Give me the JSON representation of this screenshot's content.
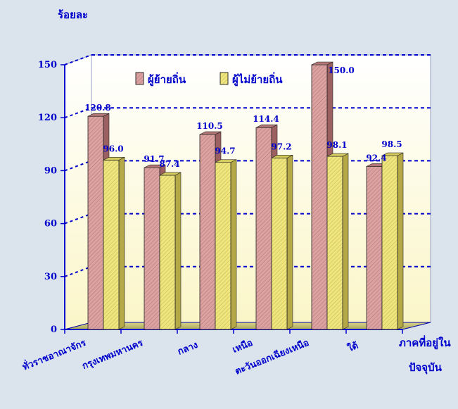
{
  "chart_data": {
    "type": "bar",
    "ylabel": "ร้อยละ",
    "xlabel_line1": "ภาคที่อยู่ใน",
    "xlabel_line2": "ปัจจุบัน",
    "ylim": [
      0,
      150
    ],
    "yticks": [
      "0",
      "30",
      "60",
      "90",
      "120",
      "150"
    ],
    "categories": [
      "ทั่วราชอาณาจักร",
      "กรุงเทพมหานคร",
      "กลาง",
      "เหนือ",
      "ตะวันออกเฉียงเหนือ",
      "ใต้"
    ],
    "series": [
      {
        "name": "ผู้ย้ายถิ่น",
        "values": [
          120.8,
          91.7,
          110.5,
          114.4,
          150.0,
          92.4
        ],
        "labels": [
          "120.8",
          "91.7",
          "110.5",
          "114.4",
          "150.0",
          "92.4"
        ],
        "color": "#d9a3a3"
      },
      {
        "name": "ผู้ไม่ย้ายถิ่น",
        "values": [
          96.0,
          87.4,
          94.7,
          97.2,
          98.1,
          98.5
        ],
        "labels": [
          "96.0",
          "87.4",
          "94.7",
          "97.2",
          "98.1",
          "98.5"
        ],
        "color": "#ece27a"
      }
    ],
    "grid": true,
    "legend_position": "top-center"
  }
}
